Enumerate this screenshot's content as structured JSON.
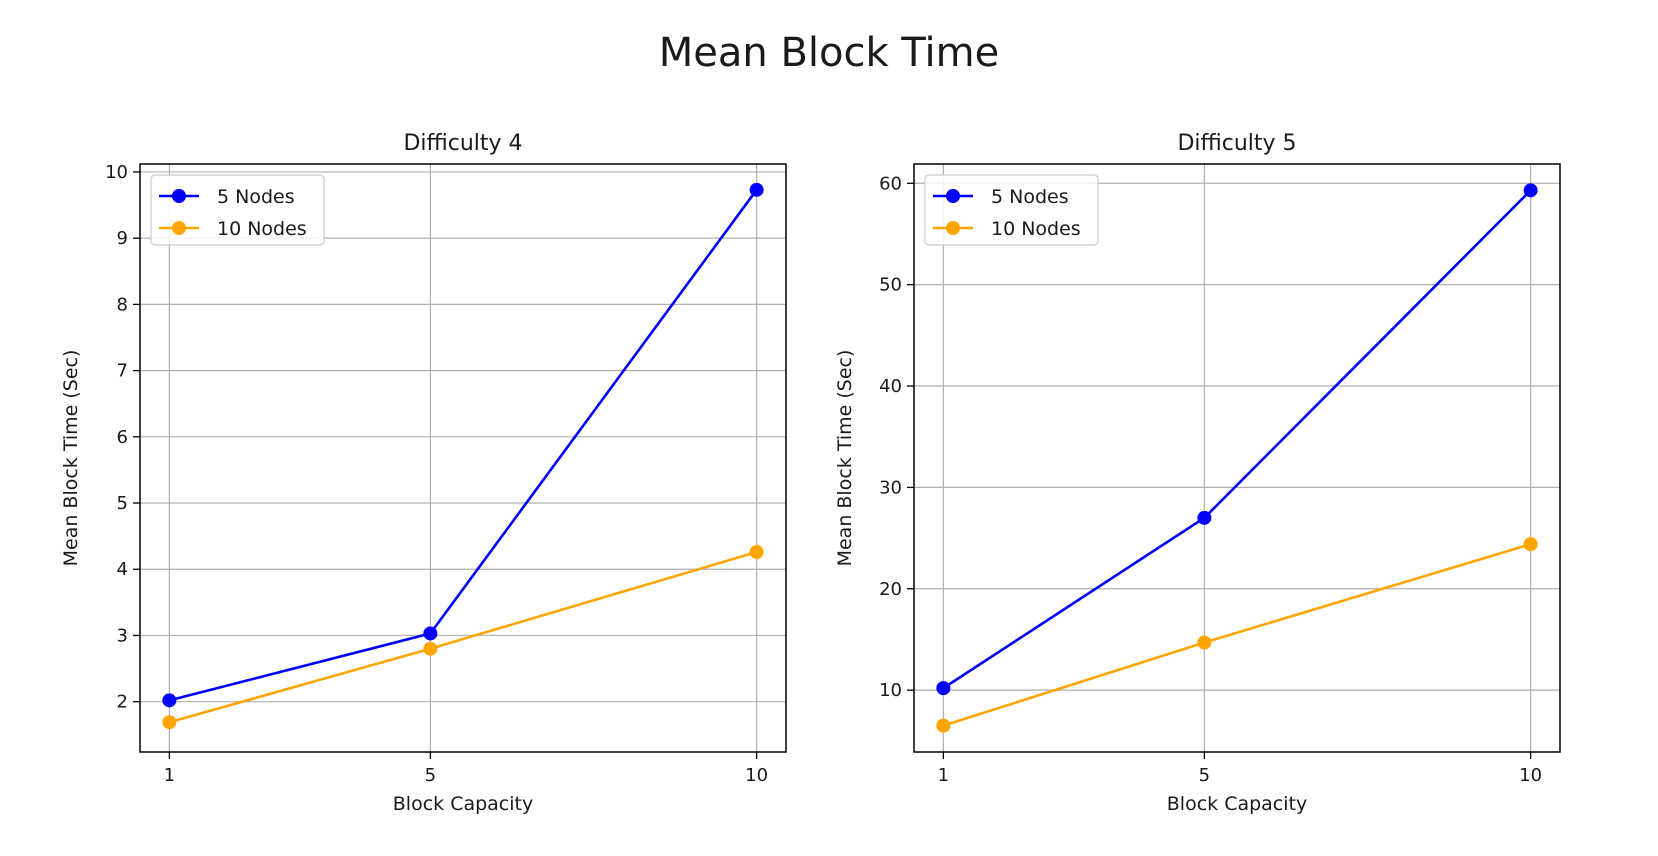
{
  "figure": {
    "suptitle": "Mean Block Time"
  },
  "chart_data": [
    {
      "type": "line",
      "title": "Difficulty 4",
      "xlabel": "Block Capacity",
      "ylabel": "Mean Block Time (Sec)",
      "x": [
        1,
        5,
        10
      ],
      "xticks": [
        1,
        5,
        10
      ],
      "yticks": [
        2,
        3,
        4,
        5,
        6,
        7,
        8,
        9,
        10
      ],
      "xlim": [
        0.55,
        10.45
      ],
      "ylim": [
        1.24,
        10.12
      ],
      "grid": true,
      "legend_position": "top-left",
      "series": [
        {
          "name": "5 Nodes",
          "color": "#0000ff",
          "marker": "circle",
          "values": [
            2.02,
            3.03,
            9.73
          ]
        },
        {
          "name": "10 Nodes",
          "color": "#ffa500",
          "marker": "circle",
          "values": [
            1.69,
            2.8,
            4.26
          ]
        }
      ]
    },
    {
      "type": "line",
      "title": "Difficulty 5",
      "xlabel": "Block Capacity",
      "ylabel": "Mean Block Time (Sec)",
      "x": [
        1,
        5,
        10
      ],
      "xticks": [
        1,
        5,
        10
      ],
      "yticks": [
        10,
        20,
        30,
        40,
        50,
        60
      ],
      "xlim": [
        0.55,
        10.45
      ],
      "ylim": [
        3.9,
        61.9
      ],
      "grid": true,
      "legend_position": "top-left",
      "series": [
        {
          "name": "5 Nodes",
          "color": "#0000ff",
          "marker": "circle",
          "values": [
            10.2,
            27.0,
            59.3
          ]
        },
        {
          "name": "10 Nodes",
          "color": "#ffa500",
          "marker": "circle",
          "values": [
            6.5,
            14.7,
            24.4
          ]
        }
      ]
    }
  ]
}
